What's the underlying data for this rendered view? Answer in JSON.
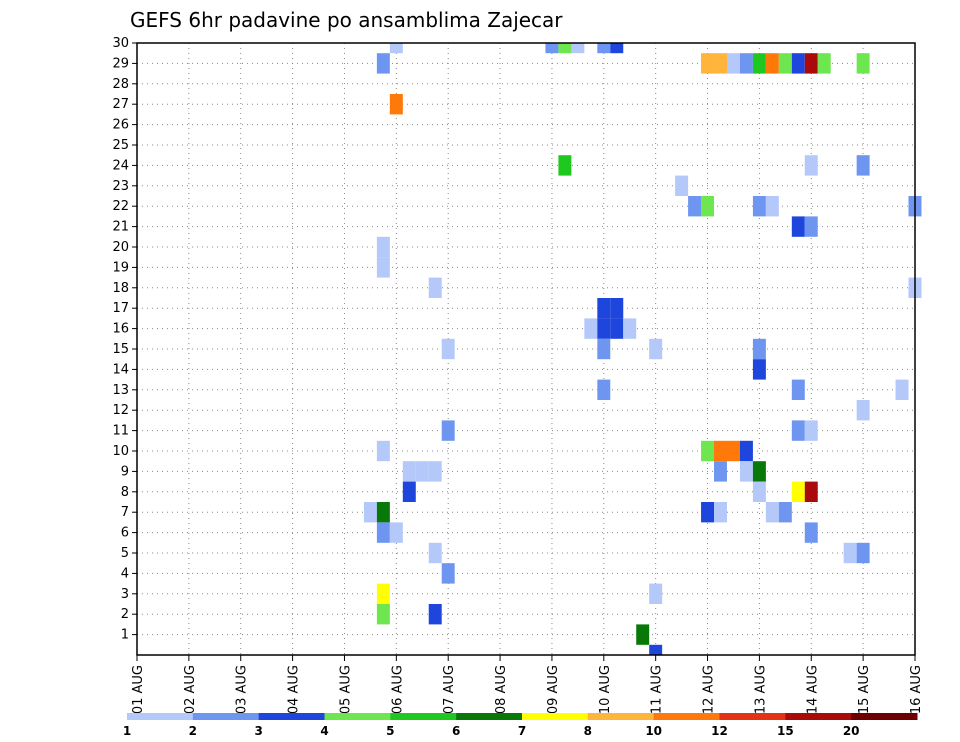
{
  "chart_data": {
    "type": "heatmap",
    "title": "GEFS 6hr padavine po ansamblima Zajecar",
    "xlabel": "",
    "ylabel": "",
    "x_tick_labels": [
      "01 AUG",
      "02 AUG",
      "03 AUG",
      "04 AUG",
      "05 AUG",
      "06 AUG",
      "07 AUG",
      "08 AUG",
      "09 AUG",
      "10 AUG",
      "11 AUG",
      "12 AUG",
      "13 AUG",
      "14 AUG",
      "15 AUG",
      "16 AUG"
    ],
    "y_tick_labels": [
      "1",
      "2",
      "3",
      "4",
      "5",
      "6",
      "7",
      "8",
      "9",
      "10",
      "11",
      "12",
      "13",
      "14",
      "15",
      "16",
      "17",
      "18",
      "19",
      "20",
      "21",
      "22",
      "23",
      "24",
      "25",
      "26",
      "27",
      "28",
      "29",
      "30"
    ],
    "x_range_days": [
      1,
      16
    ],
    "y_range_members": [
      0,
      30
    ],
    "step_hours": 6,
    "grid": true,
    "colorbar": {
      "placement": "bottom",
      "colors": [
        "#b4c8fa",
        "#6e96f0",
        "#1e46dc",
        "#6ee650",
        "#1ec81e",
        "#087808",
        "#ffff00",
        "#ffb43c",
        "#ff780a",
        "#e63214",
        "#aa0a0a",
        "#6e0000"
      ],
      "labels": [
        "1",
        "2",
        "3",
        "4",
        "5",
        "6",
        "7",
        "8",
        "10",
        "12",
        "15",
        "20"
      ]
    },
    "cells": [
      {
        "member": 30,
        "day": 6.0,
        "value": 1.5
      },
      {
        "member": 29,
        "day": 5.75,
        "value": 2.5
      },
      {
        "member": 27,
        "day": 6.0,
        "value": 11
      },
      {
        "member": 20,
        "day": 5.75,
        "value": 1.5
      },
      {
        "member": 19,
        "day": 5.75,
        "value": 1.5
      },
      {
        "member": 18,
        "day": 6.75,
        "value": 1.5
      },
      {
        "member": 15,
        "day": 7.0,
        "value": 1.5
      },
      {
        "member": 11,
        "day": 7.0,
        "value": 2.5
      },
      {
        "member": 10,
        "day": 5.75,
        "value": 1.5
      },
      {
        "member": 9,
        "day": 6.25,
        "value": 1.5
      },
      {
        "member": 9,
        "day": 6.5,
        "value": 1.5
      },
      {
        "member": 9,
        "day": 6.75,
        "value": 1.5
      },
      {
        "member": 8,
        "day": 6.25,
        "value": 3.5
      },
      {
        "member": 7,
        "day": 5.5,
        "value": 1.5
      },
      {
        "member": 7,
        "day": 5.75,
        "value": 6.5
      },
      {
        "member": 6,
        "day": 5.75,
        "value": 2.5
      },
      {
        "member": 6,
        "day": 6.0,
        "value": 1.5
      },
      {
        "member": 5,
        "day": 6.75,
        "value": 1.5
      },
      {
        "member": 4,
        "day": 7.0,
        "value": 2.5
      },
      {
        "member": 3,
        "day": 5.75,
        "value": 7.5
      },
      {
        "member": 2,
        "day": 5.75,
        "value": 4.5
      },
      {
        "member": 2,
        "day": 6.75,
        "value": 3.5
      },
      {
        "member": 30,
        "day": 9.0,
        "value": 2.5
      },
      {
        "member": 30,
        "day": 9.25,
        "value": 4.5
      },
      {
        "member": 30,
        "day": 9.5,
        "value": 1.5
      },
      {
        "member": 30,
        "day": 10.0,
        "value": 2.5
      },
      {
        "member": 30,
        "day": 10.25,
        "value": 3.5
      },
      {
        "member": 24,
        "day": 9.25,
        "value": 5.5
      },
      {
        "member": 16,
        "day": 9.75,
        "value": 1.5
      },
      {
        "member": 16,
        "day": 10.0,
        "value": 3.5
      },
      {
        "member": 16,
        "day": 10.25,
        "value": 3.5
      },
      {
        "member": 16,
        "day": 10.5,
        "value": 1.5
      },
      {
        "member": 17,
        "day": 10.0,
        "value": 3.5
      },
      {
        "member": 17,
        "day": 10.25,
        "value": 3.5
      },
      {
        "member": 15,
        "day": 10.0,
        "value": 2.5
      },
      {
        "member": 15,
        "day": 11.0,
        "value": 1.5
      },
      {
        "member": 13,
        "day": 10.0,
        "value": 2.5
      },
      {
        "member": 3,
        "day": 11.0,
        "value": 1.5
      },
      {
        "member": 1,
        "day": 10.75,
        "value": 6.5
      },
      {
        "member": 0,
        "day": 11.0,
        "value": 3.5
      },
      {
        "member": 29,
        "day": 12.0,
        "value": 9
      },
      {
        "member": 29,
        "day": 12.25,
        "value": 9
      },
      {
        "member": 29,
        "day": 12.5,
        "value": 1.5
      },
      {
        "member": 29,
        "day": 12.75,
        "value": 2.5
      },
      {
        "member": 29,
        "day": 13.0,
        "value": 5.5
      },
      {
        "member": 29,
        "day": 13.25,
        "value": 11
      },
      {
        "member": 29,
        "day": 13.5,
        "value": 4.5
      },
      {
        "member": 29,
        "day": 13.75,
        "value": 3.5
      },
      {
        "member": 29,
        "day": 14.0,
        "value": 17
      },
      {
        "member": 29,
        "day": 14.25,
        "value": 4.5
      },
      {
        "member": 29,
        "day": 15.0,
        "value": 4.5
      },
      {
        "member": 24,
        "day": 14.0,
        "value": 1.5
      },
      {
        "member": 24,
        "day": 15.0,
        "value": 2.5
      },
      {
        "member": 23,
        "day": 11.5,
        "value": 1.5
      },
      {
        "member": 22,
        "day": 11.75,
        "value": 2.5
      },
      {
        "member": 22,
        "day": 12.0,
        "value": 4.5
      },
      {
        "member": 22,
        "day": 13.0,
        "value": 2.5
      },
      {
        "member": 22,
        "day": 13.25,
        "value": 1.5
      },
      {
        "member": 22,
        "day": 16.0,
        "value": 2.5
      },
      {
        "member": 21,
        "day": 13.75,
        "value": 3.5
      },
      {
        "member": 21,
        "day": 14.0,
        "value": 2.5
      },
      {
        "member": 18,
        "day": 16.0,
        "value": 1.5
      },
      {
        "member": 15,
        "day": 13.0,
        "value": 2.5
      },
      {
        "member": 14,
        "day": 13.0,
        "value": 3.5
      },
      {
        "member": 13,
        "day": 13.75,
        "value": 2.5
      },
      {
        "member": 13,
        "day": 15.75,
        "value": 1.5
      },
      {
        "member": 12,
        "day": 15.0,
        "value": 1.5
      },
      {
        "member": 11,
        "day": 13.75,
        "value": 2.5
      },
      {
        "member": 11,
        "day": 14.0,
        "value": 1.5
      },
      {
        "member": 10,
        "day": 12.0,
        "value": 4.5
      },
      {
        "member": 10,
        "day": 12.25,
        "value": 11
      },
      {
        "member": 10,
        "day": 12.5,
        "value": 11
      },
      {
        "member": 10,
        "day": 12.75,
        "value": 3.5
      },
      {
        "member": 9,
        "day": 12.25,
        "value": 2.5
      },
      {
        "member": 9,
        "day": 12.75,
        "value": 1.5
      },
      {
        "member": 9,
        "day": 13.0,
        "value": 6.5
      },
      {
        "member": 8,
        "day": 13.0,
        "value": 1.5
      },
      {
        "member": 8,
        "day": 13.75,
        "value": 7.5
      },
      {
        "member": 8,
        "day": 14.0,
        "value": 17
      },
      {
        "member": 7,
        "day": 12.0,
        "value": 3.5
      },
      {
        "member": 7,
        "day": 12.25,
        "value": 1.5
      },
      {
        "member": 7,
        "day": 13.25,
        "value": 1.5
      },
      {
        "member": 7,
        "day": 13.5,
        "value": 2.5
      },
      {
        "member": 6,
        "day": 14.0,
        "value": 2.5
      },
      {
        "member": 5,
        "day": 14.75,
        "value": 1.5
      },
      {
        "member": 5,
        "day": 15.0,
        "value": 2.5
      }
    ]
  }
}
